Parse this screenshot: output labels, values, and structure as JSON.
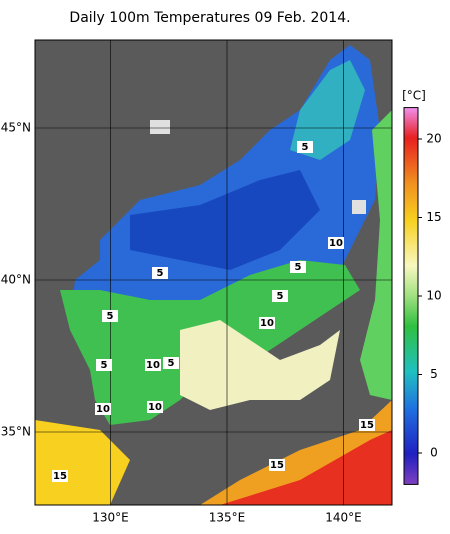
{
  "title": "Daily 100m Temperatures 09 Feb. 2014.",
  "colorbar": {
    "unit": "[°C]",
    "range": [
      -2,
      22
    ],
    "ticks": [
      0,
      5,
      10,
      15,
      20
    ]
  },
  "grid": {
    "lat": [
      {
        "value": 45,
        "label": "45°N"
      },
      {
        "value": 40,
        "label": "40°N"
      },
      {
        "value": 35,
        "label": "35°N"
      }
    ],
    "lon": [
      {
        "value": 130,
        "label": "130°E"
      },
      {
        "value": 135,
        "label": "135°E"
      },
      {
        "value": 140,
        "label": "140°E"
      }
    ]
  },
  "contour_labels": [
    5,
    10,
    5,
    5,
    5,
    5,
    10,
    10,
    5,
    5,
    10,
    10,
    15,
    15,
    15
  ]
}
